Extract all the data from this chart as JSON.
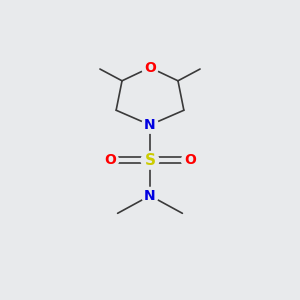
{
  "background_color": "#e8eaec",
  "atom_colors": {
    "C": "#3a3a3a",
    "N": "#0000e0",
    "O": "#ff0000",
    "S": "#cccc00"
  },
  "bond_color": "#3a3a3a",
  "bond_width": 1.2,
  "font_size_atoms": 10,
  "figsize": [
    3.0,
    3.0
  ],
  "dpi": 100
}
